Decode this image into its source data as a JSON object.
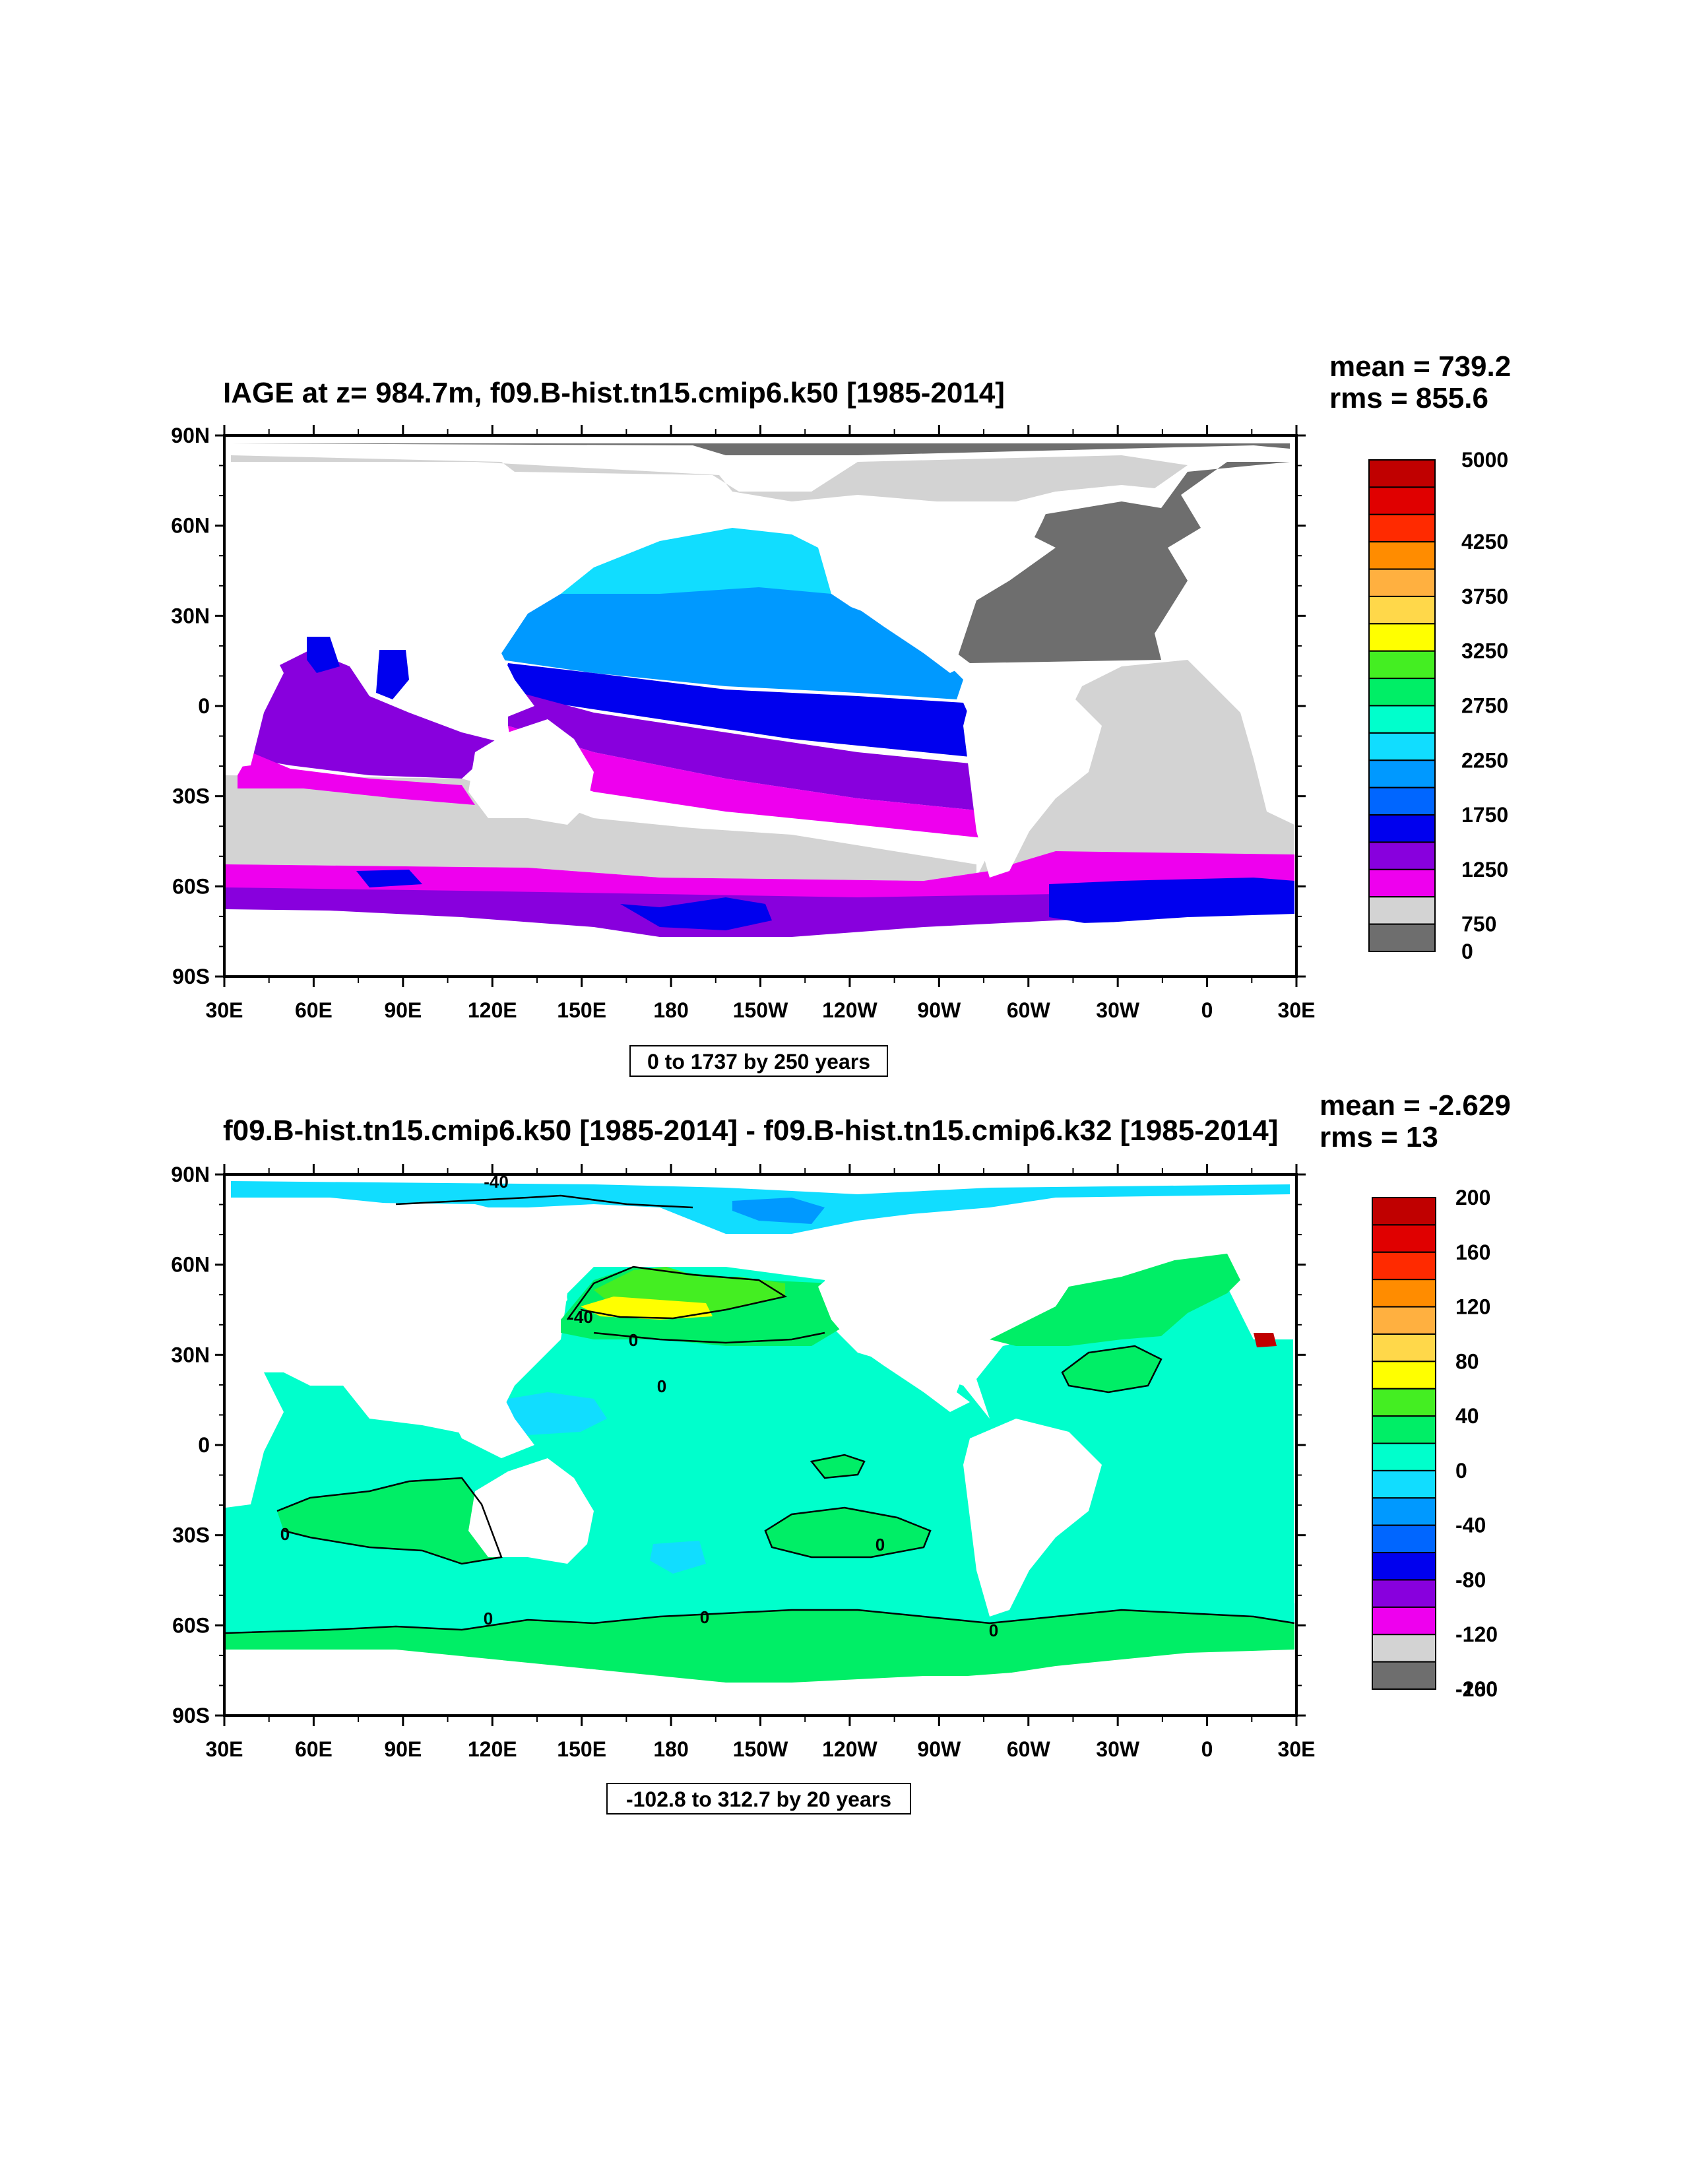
{
  "panels": [
    {
      "title": "IAGE at z= 984.7m, f09.B-hist.tn15.cmip6.k50 [1985-2014]",
      "mean_text": "mean = 739.2",
      "rms_text": "rms = 855.6",
      "info_text": "0 to 1737 by 250 years",
      "lat_ticks": [
        "90N",
        "60N",
        "30N",
        "0",
        "30S",
        "60S",
        "90S"
      ],
      "lon_ticks": [
        "30E",
        "60E",
        "90E",
        "120E",
        "150E",
        "180",
        "150W",
        "120W",
        "90W",
        "60W",
        "30W",
        "0",
        "30E"
      ],
      "colorbar": {
        "colors": [
          "#c00000",
          "#e00000",
          "#ff2a00",
          "#ff8c00",
          "#ffb040",
          "#ffd84a",
          "#ffff00",
          "#44ee22",
          "#00ee66",
          "#00ffcc",
          "#11ddff",
          "#0099ff",
          "#0066ff",
          "#0000ee",
          "#8800dd",
          "#ee00ee",
          "#d3d3d3",
          "#6e6e6e"
        ],
        "labels": [
          "5000",
          "4250",
          "3750",
          "3250",
          "2750",
          "2250",
          "1750",
          "1250",
          "750",
          "0"
        ]
      },
      "regions": [
        {
          "value": 0,
          "color": "#6e6e6e",
          "label": "arctic-shelf"
        },
        {
          "value": 0,
          "color": "#d3d3d3",
          "label": "southern-gray"
        },
        {
          "value": 1000,
          "color": "#0066ff",
          "label": "north-pacific"
        },
        {
          "value": 1250,
          "color": "#0000ee",
          "label": "tropical-pacific"
        },
        {
          "value": 750,
          "color": "#ee00ee",
          "label": "southern-ocean"
        }
      ]
    },
    {
      "title": "f09.B-hist.tn15.cmip6.k50 [1985-2014] - f09.B-hist.tn15.cmip6.k32 [1985-2014]",
      "mean_text": "mean = -2.629",
      "rms_text": "rms = 13",
      "info_text": "-102.8 to 312.7 by 20 years",
      "lat_ticks": [
        "90N",
        "60N",
        "30N",
        "0",
        "30S",
        "60S",
        "90S"
      ],
      "lon_ticks": [
        "30E",
        "60E",
        "90E",
        "120E",
        "150E",
        "180",
        "150W",
        "120W",
        "90W",
        "60W",
        "30W",
        "0",
        "30E"
      ],
      "colorbar": {
        "colors": [
          "#c00000",
          "#e00000",
          "#ff2a00",
          "#ff8c00",
          "#ffb040",
          "#ffd84a",
          "#ffff00",
          "#44ee22",
          "#00ee66",
          "#00ffcc",
          "#11ddff",
          "#0099ff",
          "#0066ff",
          "#0000ee",
          "#8800dd",
          "#ee00ee",
          "#d3d3d3",
          "#6e6e6e"
        ],
        "labels": [
          "200",
          "160",
          "120",
          "80",
          "40",
          "0",
          "-40",
          "-80",
          "-120",
          "-160",
          "-200"
        ]
      },
      "contour_labels": [
        "-40",
        "0",
        "0",
        "0",
        "0",
        "0",
        "0",
        "0",
        "-40"
      ]
    }
  ]
}
